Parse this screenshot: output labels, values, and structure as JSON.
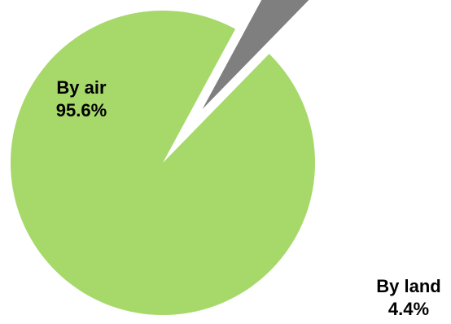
{
  "chart_data": {
    "type": "pie",
    "title": "",
    "slices": [
      {
        "label": "By air",
        "value": 95.6,
        "value_label": "95.6%",
        "color": "#a6d96a",
        "exploded": false
      },
      {
        "label": "By land",
        "value": 4.4,
        "value_label": "4.4%",
        "color": "#7f7f7f",
        "exploded": true
      }
    ],
    "start_angle_deg": 45.7,
    "direction": "counterclockwise",
    "legend": "none",
    "data_labels": "category and percentage"
  }
}
